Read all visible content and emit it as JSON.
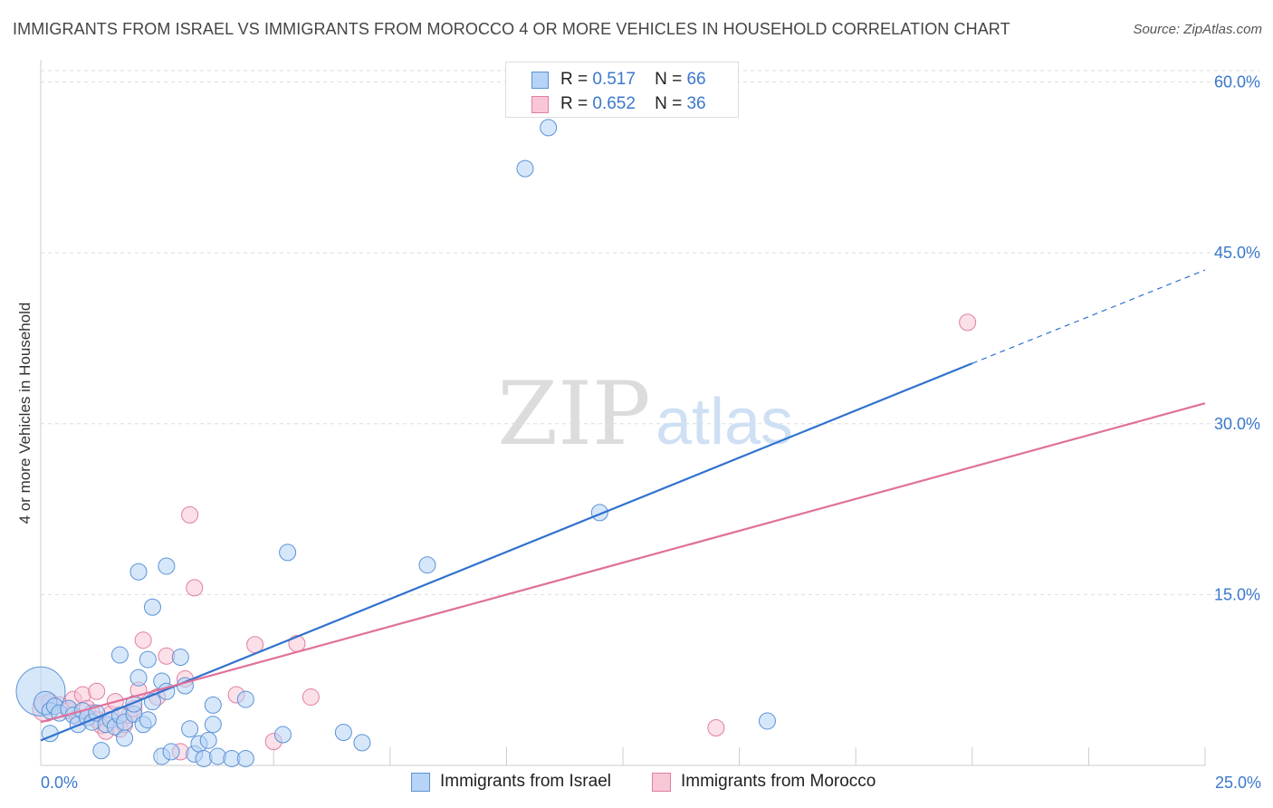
{
  "title": "IMMIGRANTS FROM ISRAEL VS IMMIGRANTS FROM MOROCCO 4 OR MORE VEHICLES IN HOUSEHOLD CORRELATION CHART",
  "source": "Source: ZipAtlas.com",
  "watermark": {
    "zip": "ZIP",
    "atlas": "atlas"
  },
  "legend": {
    "r_label": "R =",
    "n_label": "N =",
    "items": [
      {
        "r": "0.517",
        "n": "66"
      },
      {
        "r": "0.652",
        "n": "36"
      }
    ]
  },
  "colors": {
    "israel_fill": "#b7d3f5",
    "israel_stroke": "#5b93d6",
    "israel_line": "#2f72cf",
    "morocco_fill": "#f9c6d6",
    "morocco_stroke": "#e07fa0",
    "morocco_line": "#e0709a",
    "tick_label": "#3a78cc",
    "grid": "#dddddd"
  },
  "chart_data": {
    "type": "scatter",
    "title": "IMMIGRANTS FROM ISRAEL VS IMMIGRANTS FROM MOROCCO 4 OR MORE VEHICLES IN HOUSEHOLD CORRELATION CHART",
    "xlabel": "",
    "ylabel": "4 or more Vehicles in Household",
    "xlim": [
      0,
      25
    ],
    "ylim": [
      0,
      61
    ],
    "x_tick_labels": [
      "0.0%",
      "25.0%"
    ],
    "y_ticks": [
      15,
      30,
      45,
      60
    ],
    "y_tick_labels": [
      "15.0%",
      "30.0%",
      "45.0%",
      "60.0%"
    ],
    "grid": true,
    "series": [
      {
        "name": "Immigrants from Israel",
        "r": 0.517,
        "n": 66,
        "trend": {
          "x0": 0.0,
          "y0": 2.2,
          "x1": 20.0,
          "y1": 35.3,
          "dashed_to_x": 25.0,
          "dashed_to_y": 43.5
        },
        "points": [
          [
            0.0,
            6.5,
            3
          ],
          [
            0.1,
            5.5,
            1.4
          ],
          [
            0.2,
            4.8,
            1
          ],
          [
            0.2,
            2.8,
            1
          ],
          [
            0.3,
            5.2,
            1
          ],
          [
            0.4,
            4.6,
            1
          ],
          [
            0.6,
            5.0,
            1
          ],
          [
            0.7,
            4.4,
            1
          ],
          [
            0.8,
            3.6,
            1
          ],
          [
            0.9,
            4.8,
            1
          ],
          [
            1.0,
            4.2,
            1
          ],
          [
            1.1,
            3.8,
            1
          ],
          [
            1.2,
            4.6,
            1
          ],
          [
            1.3,
            1.3,
            1
          ],
          [
            1.4,
            3.6,
            1
          ],
          [
            1.5,
            4.0,
            1
          ],
          [
            1.6,
            3.4,
            1
          ],
          [
            1.7,
            9.7,
            1
          ],
          [
            1.7,
            4.4,
            1
          ],
          [
            1.8,
            2.4,
            1
          ],
          [
            1.8,
            3.8,
            1
          ],
          [
            2.0,
            4.5,
            1
          ],
          [
            2.0,
            5.4,
            1
          ],
          [
            2.1,
            7.7,
            1
          ],
          [
            2.1,
            17.0,
            1
          ],
          [
            2.2,
            3.6,
            1
          ],
          [
            2.3,
            9.3,
            1
          ],
          [
            2.3,
            4.0,
            1
          ],
          [
            2.4,
            13.9,
            1
          ],
          [
            2.4,
            5.6,
            1
          ],
          [
            2.6,
            7.4,
            1
          ],
          [
            2.6,
            0.8,
            1
          ],
          [
            2.7,
            6.5,
            1
          ],
          [
            2.7,
            17.5,
            1
          ],
          [
            2.8,
            1.2,
            1
          ],
          [
            3.0,
            9.5,
            1
          ],
          [
            3.1,
            7.0,
            1
          ],
          [
            3.2,
            3.2,
            1
          ],
          [
            3.3,
            1.0,
            1
          ],
          [
            3.4,
            1.9,
            1
          ],
          [
            3.5,
            0.6,
            1
          ],
          [
            3.6,
            2.2,
            1
          ],
          [
            3.7,
            3.6,
            1
          ],
          [
            3.7,
            5.3,
            1
          ],
          [
            3.8,
            0.8,
            1
          ],
          [
            4.1,
            0.6,
            1
          ],
          [
            4.4,
            5.8,
            1
          ],
          [
            4.4,
            0.6,
            1
          ],
          [
            5.2,
            2.7,
            1
          ],
          [
            5.3,
            18.7,
            1
          ],
          [
            6.5,
            2.9,
            1
          ],
          [
            6.9,
            2.0,
            1
          ],
          [
            8.3,
            17.6,
            1
          ],
          [
            10.4,
            52.4,
            1
          ],
          [
            10.9,
            56.0,
            1
          ],
          [
            12.0,
            22.2,
            1
          ],
          [
            15.6,
            3.9,
            1
          ]
        ]
      },
      {
        "name": "Immigrants from Morocco",
        "r": 0.652,
        "n": 36,
        "trend": {
          "x0": 0.0,
          "y0": 3.8,
          "x1": 25.0,
          "y1": 31.8
        },
        "points": [
          [
            0.1,
            5.0,
            1.6
          ],
          [
            0.2,
            5.6,
            1
          ],
          [
            0.4,
            5.3,
            1
          ],
          [
            0.6,
            4.8,
            1
          ],
          [
            0.7,
            5.8,
            1
          ],
          [
            0.8,
            4.2,
            1
          ],
          [
            0.9,
            6.2,
            1
          ],
          [
            1.0,
            5.0,
            1
          ],
          [
            1.1,
            4.6,
            1
          ],
          [
            1.2,
            4.0,
            1
          ],
          [
            1.2,
            6.5,
            1
          ],
          [
            1.3,
            3.5,
            1
          ],
          [
            1.4,
            3.0,
            1
          ],
          [
            1.5,
            4.5,
            1
          ],
          [
            1.6,
            5.6,
            1
          ],
          [
            1.7,
            3.2,
            1
          ],
          [
            1.8,
            3.6,
            1
          ],
          [
            1.9,
            4.4,
            1
          ],
          [
            2.0,
            5.0,
            1
          ],
          [
            2.1,
            6.6,
            1
          ],
          [
            2.2,
            11.0,
            1
          ],
          [
            2.5,
            6.0,
            1
          ],
          [
            2.7,
            9.6,
            1
          ],
          [
            3.0,
            1.2,
            1
          ],
          [
            3.1,
            7.6,
            1
          ],
          [
            3.2,
            22.0,
            1
          ],
          [
            3.3,
            15.6,
            1
          ],
          [
            4.2,
            6.2,
            1
          ],
          [
            4.6,
            10.6,
            1
          ],
          [
            5.0,
            2.1,
            1
          ],
          [
            5.5,
            10.7,
            1
          ],
          [
            5.8,
            6.0,
            1
          ],
          [
            14.5,
            3.3,
            1
          ],
          [
            19.9,
            38.9,
            1
          ]
        ]
      }
    ]
  }
}
